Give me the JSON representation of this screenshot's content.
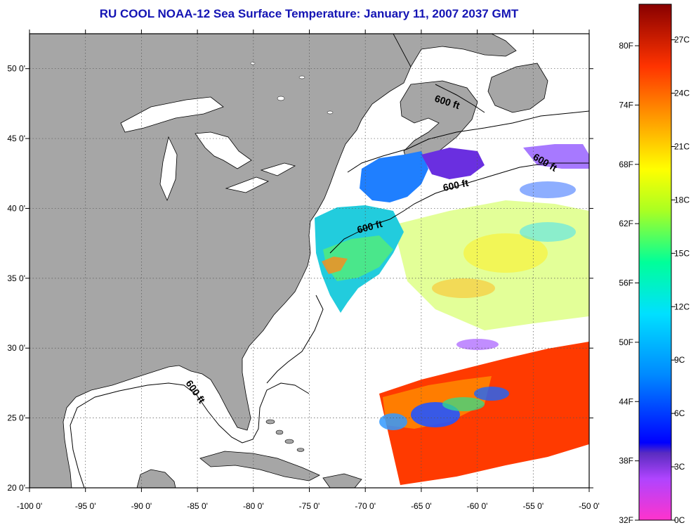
{
  "title": "RU COOL  NOAA-12  Sea Surface Temperature:  January 11, 2007 2037 GMT",
  "map": {
    "lon_labels": [
      "-100 0'",
      "-95 0'",
      "-90 0'",
      "-85 0'",
      "-80 0'",
      "-75 0'",
      "-70 0'",
      "-65 0'",
      "-60 0'",
      "-55 0'",
      "-50 0'"
    ],
    "lat_labels": [
      "50 0'",
      "45 0'",
      "40 0'",
      "35 0'",
      "30 0'",
      "25 0'",
      "20 0'"
    ],
    "lon_range": [
      -100,
      -50
    ],
    "lat_range": [
      20,
      52.5
    ],
    "contour_label": "600 ft",
    "colors": {
      "land": "#a6a6a6",
      "ocean": "#ffffff",
      "gridline": "#555555"
    }
  },
  "colorbar": {
    "fahrenheit_labels": [
      "80F",
      "74F",
      "68F",
      "62F",
      "56F",
      "50F",
      "44F",
      "38F",
      "32F"
    ],
    "celsius_labels": [
      "27C",
      "24C",
      "21C",
      "18C",
      "15C",
      "12C",
      "9C",
      "6C",
      "3C",
      "0C"
    ],
    "range_c": [
      0,
      29
    ]
  }
}
